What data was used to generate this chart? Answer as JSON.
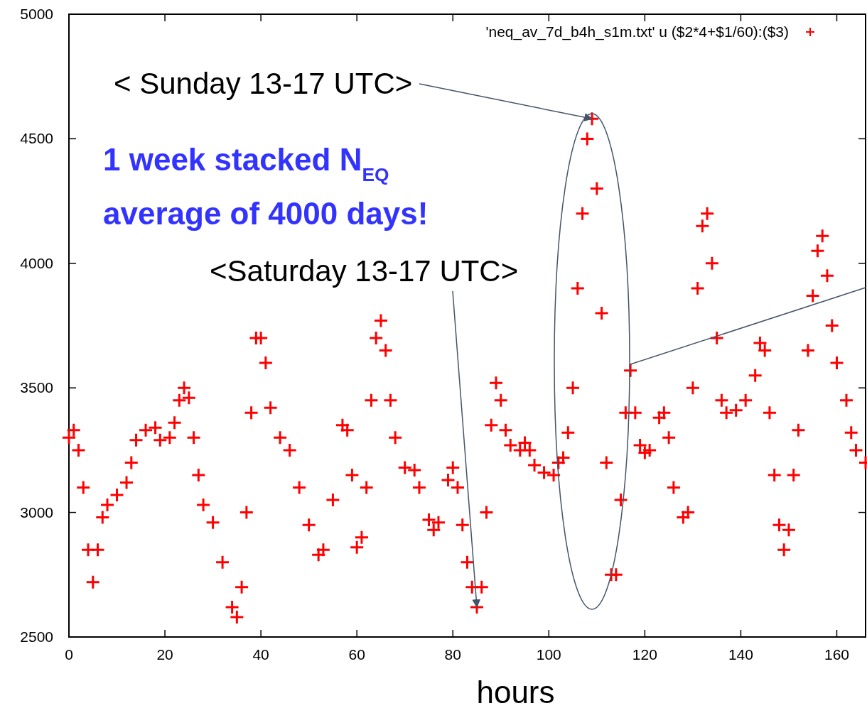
{
  "chart_data": {
    "type": "scatter",
    "xlabel": "hours",
    "marker": "cross",
    "legend": "top right",
    "xlim": [
      0,
      166
    ],
    "xticks": [
      0,
      20,
      40,
      60,
      80,
      100,
      120,
      140,
      160
    ],
    "ylim": [
      2500,
      5000
    ],
    "yticks": [
      2500,
      3000,
      3500,
      4000,
      4500,
      5000
    ],
    "annotations": [
      {
        "text": "< Sunday 13-17 UTC>",
        "x": 109,
        "y": 4580
      },
      {
        "text": "<Saturday 13-17 UTC>",
        "x": 85,
        "y": 2620
      },
      "1 week stacked N$_{EQ}$",
      "average of 4000 days!"
    ],
    "series": [
      {
        "name": "'neq_av_7d_b4h_s1m.txt' u ($2*4+$1/60):($3)",
        "color": "#ff0000",
        "x": [
          0,
          1,
          2,
          3,
          4,
          5,
          6,
          7,
          8,
          10,
          12,
          13,
          14,
          16,
          18,
          19,
          21,
          22,
          23,
          24,
          25,
          26,
          27,
          28,
          30,
          32,
          34,
          35,
          36,
          37,
          38,
          39,
          40,
          41,
          42,
          44,
          46,
          48,
          50,
          52,
          53,
          55,
          57,
          58,
          59,
          60,
          61,
          62,
          63,
          64,
          65,
          66,
          67,
          68,
          70,
          72,
          73,
          75,
          76,
          77,
          79,
          80,
          81,
          82,
          83,
          84,
          85,
          86,
          87,
          88,
          89,
          90,
          91,
          92,
          94,
          95,
          96,
          97,
          99,
          101,
          102,
          103,
          104,
          105,
          106,
          107,
          108,
          109,
          110,
          111,
          112,
          113,
          114,
          115,
          116,
          117,
          118,
          119,
          120,
          121,
          123,
          124,
          125,
          126,
          128,
          129,
          130,
          131,
          132,
          133,
          134,
          135,
          136,
          137,
          139,
          141,
          143,
          144,
          145,
          146,
          147,
          148,
          149,
          150,
          151,
          152,
          154,
          155,
          156,
          157,
          158,
          159,
          160,
          162,
          163,
          164,
          166
        ],
        "values": [
          3300,
          3330,
          3250,
          3100,
          2850,
          2720,
          2850,
          2980,
          3030,
          3070,
          3120,
          3200,
          3290,
          3330,
          3340,
          3290,
          3300,
          3360,
          3450,
          3500,
          3460,
          3300,
          3150,
          3030,
          2960,
          2800,
          2620,
          2580,
          2700,
          3000,
          3400,
          3700,
          3700,
          3600,
          3420,
          3300,
          3250,
          3100,
          2950,
          2830,
          2850,
          3050,
          3350,
          3330,
          3150,
          2860,
          2900,
          3100,
          3450,
          3700,
          3770,
          3650,
          3450,
          3300,
          3180,
          3170,
          3100,
          2970,
          2930,
          2960,
          3130,
          3180,
          3100,
          2950,
          2800,
          2700,
          2620,
          2700,
          3000,
          3350,
          3520,
          3450,
          3330,
          3270,
          3250,
          3280,
          3250,
          3190,
          3160,
          3150,
          3200,
          3220,
          3320,
          3500,
          3900,
          4200,
          4500,
          4580,
          4300,
          3800,
          3200,
          2750,
          2750,
          3050,
          3400,
          3570,
          3400,
          3270,
          3240,
          3250,
          3380,
          3400,
          3300,
          3100,
          2980,
          3000,
          3500,
          3900,
          4150,
          4200,
          4000,
          3700,
          3450,
          3400,
          3410,
          3450,
          3550,
          3680,
          3650,
          3400,
          3150,
          2950,
          2850,
          2930,
          3150,
          3330,
          3650,
          3870,
          4050,
          4110,
          3950,
          3750,
          3600,
          3450,
          3320,
          3250,
          3200
        ]
      }
    ]
  }
}
